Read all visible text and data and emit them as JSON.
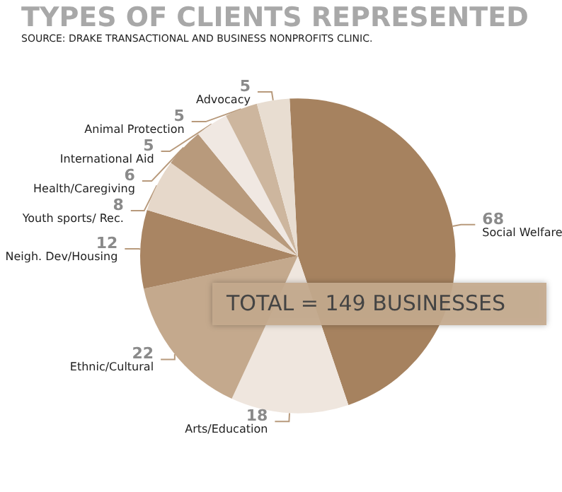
{
  "chart_data": {
    "type": "pie",
    "title": "TYPES OF CLIENTS REPRESENTED",
    "subtitle": "SOURCE: DRAKE TRANSACTIONAL AND BUSINESS NONPROFITS CLINIC.",
    "categories": [
      "Social Welfare",
      "Arts/Education",
      "Ethnic/Cultural",
      "Neigh. Dev/Housing",
      "Youth sports/ Rec.",
      "Health/Caregiving",
      "International Aid",
      "Animal Protection",
      "Advocacy"
    ],
    "values": [
      68,
      18,
      22,
      12,
      8,
      6,
      5,
      5,
      5
    ],
    "colors": [
      "#a6825f",
      "#efe6de",
      "#c4a98d",
      "#a98563",
      "#e6d8ca",
      "#b89a7c",
      "#f0e8e2",
      "#cdb69e",
      "#e8ddd1"
    ],
    "data_labels": true,
    "legend": false,
    "annotations": [
      "TOTAL = 149 BUSINESSES"
    ]
  }
}
